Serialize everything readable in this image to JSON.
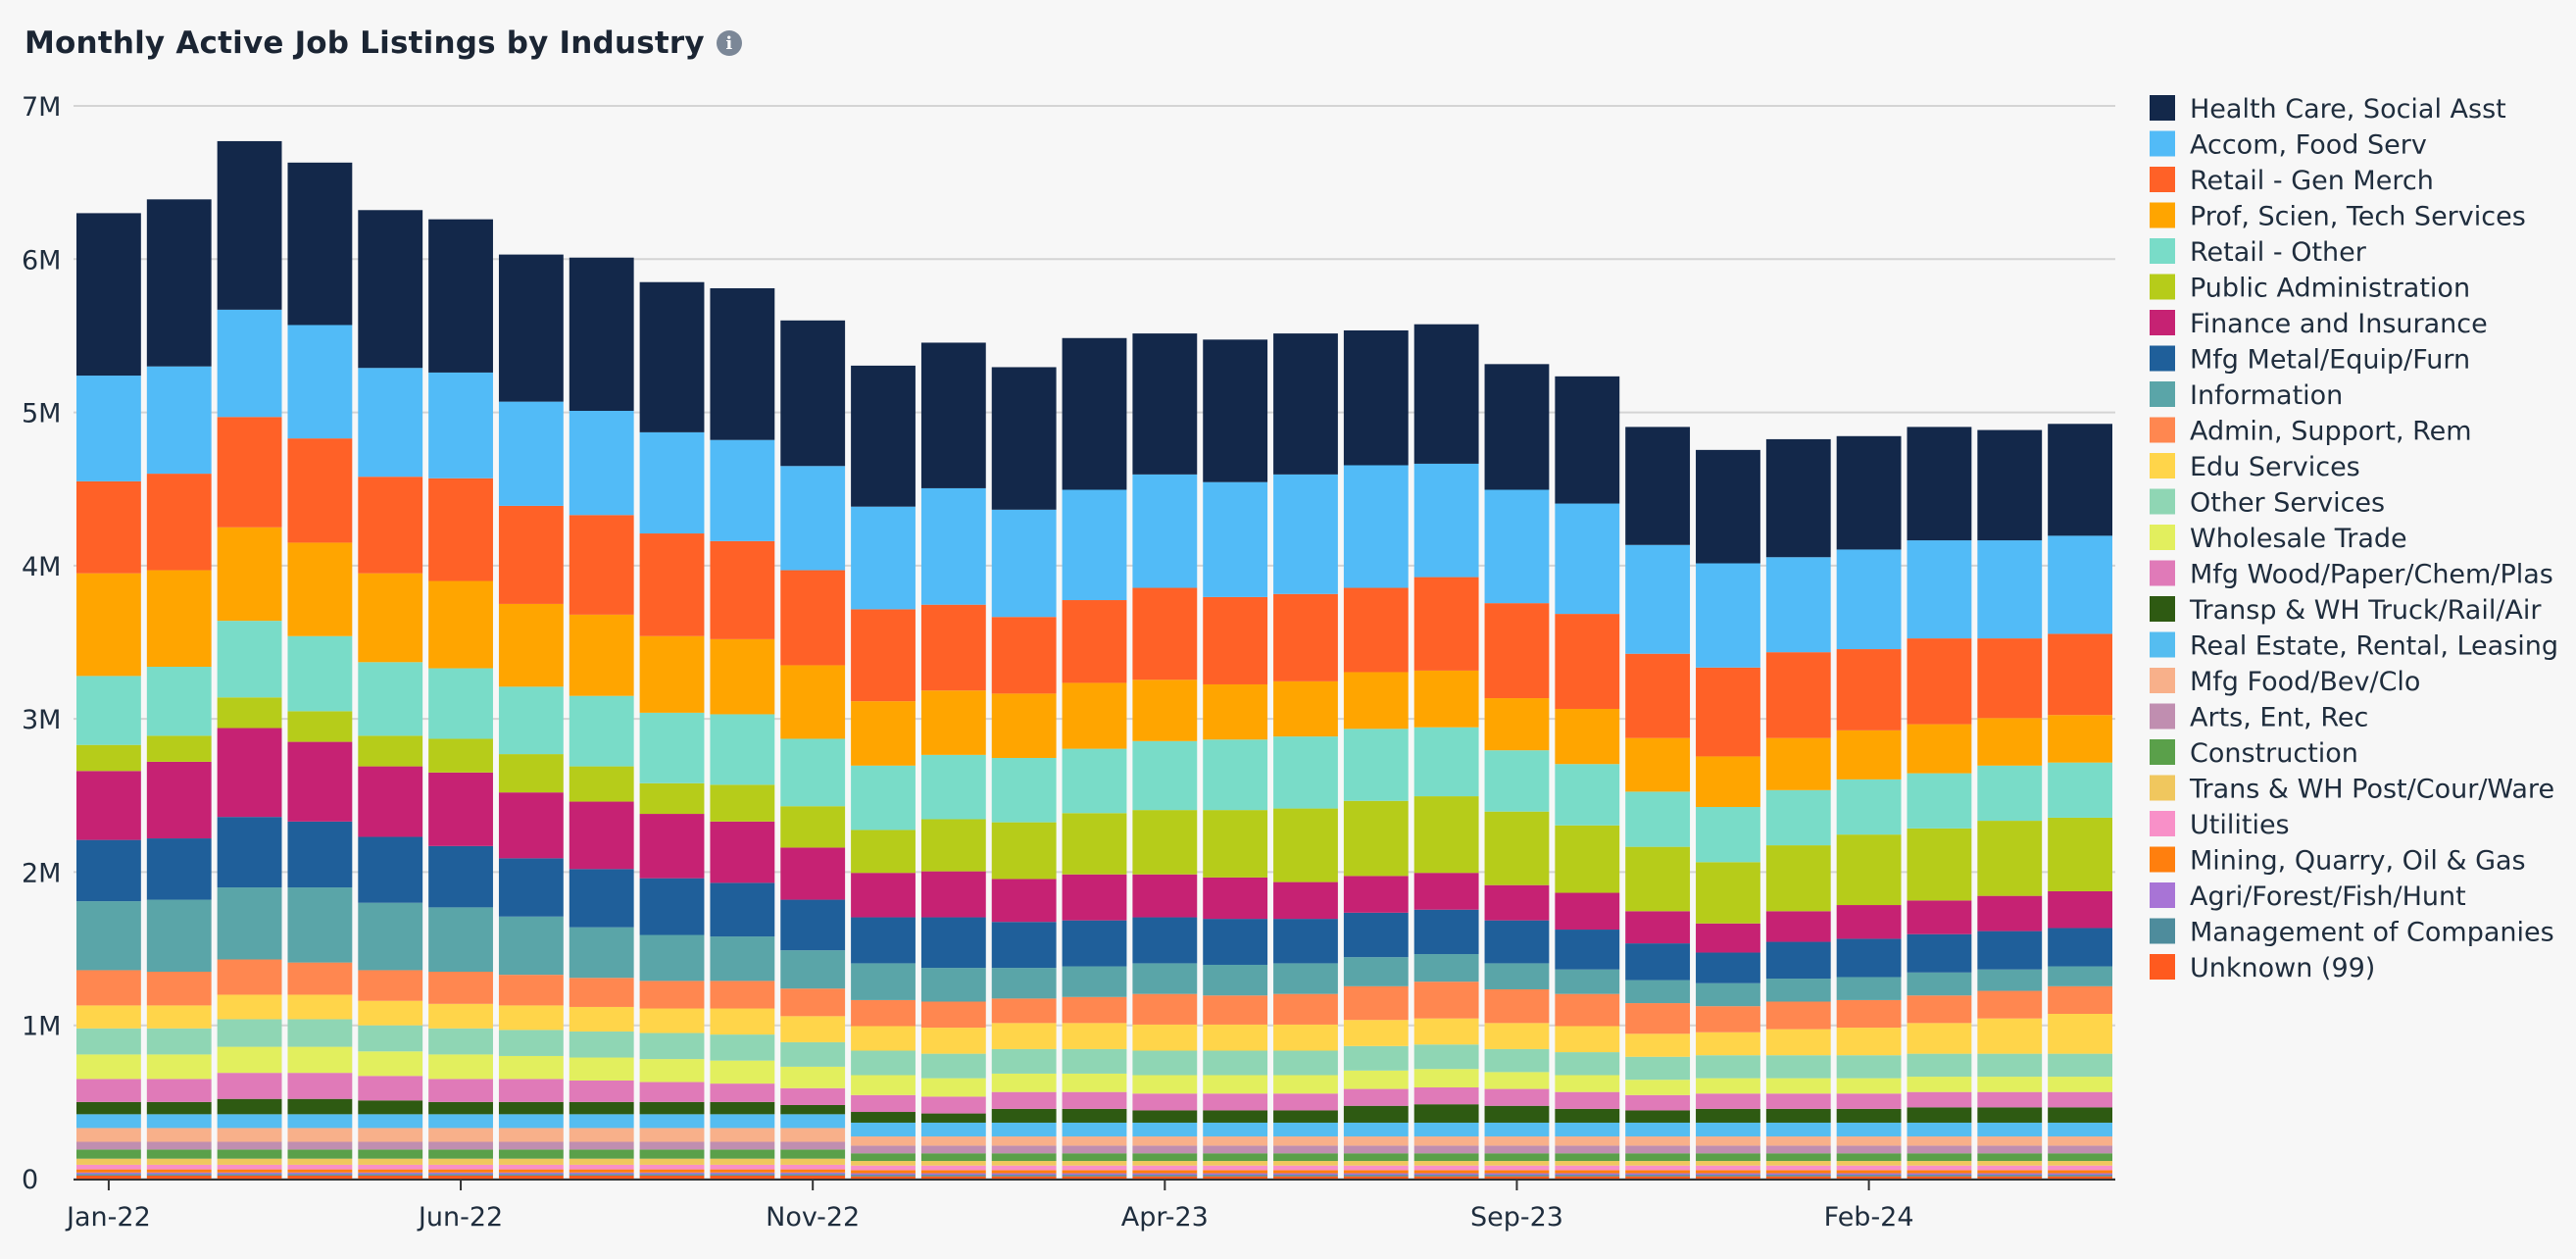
{
  "header": {
    "title": "Monthly Active Job Listings by Industry",
    "info_icon": "info-icon"
  },
  "chart_data": {
    "type": "bar",
    "stacked": true,
    "title": "Monthly Active Job Listings by Industry",
    "xlabel": "",
    "ylabel": "",
    "ylim": [
      0,
      7000000
    ],
    "yticks": [
      0,
      1000000,
      2000000,
      3000000,
      4000000,
      5000000,
      6000000,
      7000000
    ],
    "ytick_labels": [
      "0",
      "1M",
      "2M",
      "3M",
      "4M",
      "5M",
      "6M",
      "7M"
    ],
    "grid": true,
    "legend_position": "right",
    "categories": [
      "Jan-22",
      "Feb-22",
      "Mar-22",
      "Apr-22",
      "May-22",
      "Jun-22",
      "Jul-22",
      "Aug-22",
      "Sep-22",
      "Oct-22",
      "Nov-22",
      "Dec-22",
      "Jan-23",
      "Feb-23",
      "Mar-23",
      "Apr-23",
      "May-23",
      "Jun-23",
      "Jul-23",
      "Aug-23",
      "Sep-23",
      "Oct-23",
      "Nov-23",
      "Dec-23",
      "Jan-24",
      "Feb-24",
      "Mar-24",
      "Apr-24",
      "May-24"
    ],
    "xtick_labels": [
      {
        "index": 0,
        "label": "Jan-22"
      },
      {
        "index": 5,
        "label": "Jun-22"
      },
      {
        "index": 10,
        "label": "Nov-22"
      },
      {
        "index": 15,
        "label": "Apr-23"
      },
      {
        "index": 20,
        "label": "Sep-23"
      },
      {
        "index": 25,
        "label": "Feb-24"
      }
    ],
    "series": [
      {
        "name": "Unknown (99)",
        "color": "#ff5a1f",
        "values": [
          20000,
          20000,
          20000,
          20000,
          20000,
          20000,
          20000,
          20000,
          20000,
          20000,
          20000,
          15000,
          15000,
          15000,
          15000,
          15000,
          15000,
          15000,
          15000,
          15000,
          15000,
          15000,
          15000,
          15000,
          15000,
          15000,
          15000,
          15000,
          15000
        ]
      },
      {
        "name": "Management of Companies",
        "color": "#4e8c9c",
        "values": [
          10000,
          10000,
          10000,
          10000,
          10000,
          10000,
          10000,
          10000,
          10000,
          10000,
          10000,
          10000,
          10000,
          10000,
          10000,
          10000,
          10000,
          10000,
          10000,
          10000,
          10000,
          10000,
          10000,
          10000,
          10000,
          10000,
          10000,
          10000,
          10000
        ]
      },
      {
        "name": "Agri/Forest/Fish/Hunt",
        "color": "#a874d6",
        "values": [
          10000,
          10000,
          10000,
          10000,
          10000,
          10000,
          10000,
          10000,
          10000,
          10000,
          10000,
          10000,
          10000,
          10000,
          10000,
          10000,
          10000,
          10000,
          10000,
          10000,
          10000,
          10000,
          10000,
          10000,
          10000,
          10000,
          10000,
          10000,
          10000
        ]
      },
      {
        "name": "Mining, Quarry, Oil & Gas",
        "color": "#ff7f0e",
        "values": [
          20000,
          20000,
          20000,
          20000,
          20000,
          20000,
          20000,
          20000,
          20000,
          20000,
          20000,
          20000,
          20000,
          20000,
          20000,
          20000,
          20000,
          20000,
          20000,
          20000,
          20000,
          20000,
          20000,
          20000,
          20000,
          20000,
          20000,
          20000,
          20000
        ]
      },
      {
        "name": "Utilities",
        "color": "#f890c8",
        "values": [
          30000,
          30000,
          30000,
          30000,
          30000,
          30000,
          30000,
          30000,
          30000,
          30000,
          30000,
          30000,
          30000,
          30000,
          30000,
          30000,
          30000,
          30000,
          30000,
          30000,
          30000,
          30000,
          30000,
          30000,
          30000,
          30000,
          30000,
          30000,
          30000
        ]
      },
      {
        "name": "Trans & WH Post/Cour/Ware",
        "color": "#f0c75e",
        "values": [
          40000,
          40000,
          40000,
          40000,
          40000,
          40000,
          40000,
          40000,
          40000,
          40000,
          40000,
          30000,
          30000,
          30000,
          30000,
          30000,
          30000,
          30000,
          30000,
          30000,
          30000,
          30000,
          30000,
          30000,
          30000,
          30000,
          30000,
          30000,
          30000
        ]
      },
      {
        "name": "Construction",
        "color": "#5aa04a",
        "values": [
          60000,
          60000,
          60000,
          60000,
          60000,
          60000,
          60000,
          60000,
          60000,
          60000,
          60000,
          50000,
          50000,
          50000,
          50000,
          50000,
          50000,
          50000,
          50000,
          50000,
          50000,
          50000,
          50000,
          50000,
          50000,
          50000,
          50000,
          50000,
          50000
        ]
      },
      {
        "name": "Arts, Ent, Rec",
        "color": "#c08eb0",
        "values": [
          50000,
          50000,
          50000,
          50000,
          50000,
          50000,
          50000,
          50000,
          50000,
          50000,
          50000,
          50000,
          50000,
          50000,
          50000,
          50000,
          50000,
          50000,
          50000,
          50000,
          50000,
          50000,
          50000,
          50000,
          50000,
          50000,
          50000,
          50000,
          50000
        ]
      },
      {
        "name": "Mfg Food/Bev/Clo",
        "color": "#f8b08a",
        "values": [
          90000,
          90000,
          90000,
          90000,
          90000,
          90000,
          90000,
          90000,
          90000,
          90000,
          90000,
          60000,
          60000,
          60000,
          60000,
          60000,
          60000,
          60000,
          60000,
          60000,
          60000,
          60000,
          60000,
          60000,
          60000,
          60000,
          60000,
          60000,
          60000
        ]
      },
      {
        "name": "Real Estate, Rental, Leasing",
        "color": "#55bdf0",
        "values": [
          90000,
          90000,
          90000,
          90000,
          90000,
          90000,
          90000,
          90000,
          90000,
          90000,
          90000,
          90000,
          90000,
          90000,
          90000,
          90000,
          90000,
          90000,
          90000,
          90000,
          90000,
          90000,
          90000,
          90000,
          90000,
          90000,
          90000,
          90000,
          90000
        ]
      },
      {
        "name": "Transp & WH Truck/Rail/Air",
        "color": "#2e5a12",
        "values": [
          80000,
          80000,
          100000,
          100000,
          90000,
          80000,
          80000,
          80000,
          80000,
          80000,
          60000,
          70000,
          60000,
          90000,
          90000,
          80000,
          80000,
          80000,
          110000,
          120000,
          110000,
          90000,
          80000,
          90000,
          90000,
          90000,
          100000,
          100000,
          100000
        ]
      },
      {
        "name": "Mfg Wood/Paper/Chem/Plas",
        "color": "#e07ab8",
        "values": [
          150000,
          150000,
          170000,
          170000,
          160000,
          150000,
          150000,
          140000,
          130000,
          120000,
          110000,
          110000,
          110000,
          110000,
          110000,
          110000,
          110000,
          110000,
          110000,
          110000,
          110000,
          110000,
          100000,
          100000,
          100000,
          100000,
          100000,
          100000,
          100000
        ]
      },
      {
        "name": "Wholesale Trade",
        "color": "#e2ef5e",
        "values": [
          160000,
          160000,
          170000,
          170000,
          160000,
          160000,
          150000,
          150000,
          150000,
          150000,
          140000,
          130000,
          120000,
          120000,
          120000,
          120000,
          120000,
          120000,
          120000,
          120000,
          110000,
          110000,
          100000,
          100000,
          100000,
          100000,
          100000,
          100000,
          100000
        ]
      },
      {
        "name": "Other Services",
        "color": "#8fd6b4",
        "values": [
          170000,
          170000,
          180000,
          180000,
          170000,
          170000,
          170000,
          170000,
          170000,
          170000,
          160000,
          160000,
          160000,
          160000,
          160000,
          160000,
          160000,
          160000,
          160000,
          160000,
          150000,
          150000,
          150000,
          150000,
          150000,
          150000,
          150000,
          150000,
          150000
        ]
      },
      {
        "name": "Edu Services",
        "color": "#ffd54a",
        "values": [
          150000,
          150000,
          160000,
          160000,
          160000,
          160000,
          160000,
          160000,
          160000,
          170000,
          170000,
          160000,
          170000,
          170000,
          170000,
          170000,
          170000,
          170000,
          170000,
          170000,
          170000,
          170000,
          150000,
          150000,
          170000,
          180000,
          200000,
          230000,
          260000
        ]
      },
      {
        "name": "Admin, Support, Rem",
        "color": "#ff8750",
        "values": [
          230000,
          220000,
          230000,
          210000,
          200000,
          210000,
          200000,
          190000,
          180000,
          180000,
          180000,
          170000,
          170000,
          160000,
          170000,
          200000,
          190000,
          200000,
          220000,
          240000,
          220000,
          210000,
          200000,
          170000,
          180000,
          180000,
          180000,
          180000,
          180000
        ]
      },
      {
        "name": "Information",
        "color": "#5aa5a8",
        "values": [
          450000,
          470000,
          470000,
          490000,
          440000,
          420000,
          380000,
          330000,
          300000,
          290000,
          250000,
          240000,
          220000,
          200000,
          200000,
          200000,
          200000,
          200000,
          190000,
          180000,
          170000,
          160000,
          150000,
          150000,
          150000,
          150000,
          150000,
          140000,
          130000
        ]
      },
      {
        "name": "Mfg Metal/Equip/Furn",
        "color": "#1f5f9a",
        "values": [
          400000,
          400000,
          460000,
          430000,
          430000,
          400000,
          380000,
          380000,
          370000,
          350000,
          330000,
          300000,
          330000,
          300000,
          300000,
          300000,
          300000,
          290000,
          290000,
          290000,
          280000,
          260000,
          240000,
          200000,
          240000,
          250000,
          250000,
          250000,
          250000
        ]
      },
      {
        "name": "Finance and Insurance",
        "color": "#c62273",
        "values": [
          450000,
          500000,
          580000,
          520000,
          460000,
          480000,
          430000,
          440000,
          420000,
          400000,
          340000,
          290000,
          300000,
          280000,
          300000,
          280000,
          270000,
          240000,
          240000,
          240000,
          230000,
          240000,
          210000,
          190000,
          200000,
          220000,
          220000,
          230000,
          240000
        ]
      },
      {
        "name": "Public Administration",
        "color": "#b6cc1a",
        "values": [
          170000,
          170000,
          200000,
          200000,
          200000,
          220000,
          250000,
          230000,
          200000,
          240000,
          270000,
          280000,
          340000,
          370000,
          400000,
          420000,
          440000,
          480000,
          490000,
          500000,
          480000,
          440000,
          420000,
          400000,
          430000,
          460000,
          470000,
          490000,
          480000
        ]
      },
      {
        "name": "Retail - Other",
        "color": "#79dcc8",
        "values": [
          450000,
          450000,
          500000,
          490000,
          480000,
          460000,
          440000,
          460000,
          460000,
          460000,
          440000,
          420000,
          420000,
          420000,
          420000,
          450000,
          460000,
          470000,
          470000,
          450000,
          400000,
          400000,
          360000,
          360000,
          360000,
          360000,
          360000,
          360000,
          360000
        ]
      },
      {
        "name": "Prof, Scien, Tech Services",
        "color": "#ffa500",
        "values": [
          670000,
          630000,
          610000,
          610000,
          580000,
          570000,
          540000,
          530000,
          500000,
          490000,
          480000,
          420000,
          420000,
          420000,
          430000,
          400000,
          360000,
          360000,
          370000,
          370000,
          340000,
          360000,
          350000,
          330000,
          340000,
          320000,
          320000,
          310000,
          310000
        ]
      },
      {
        "name": "Retail - Gen Merch",
        "color": "#ff6127",
        "values": [
          600000,
          630000,
          720000,
          680000,
          630000,
          670000,
          640000,
          650000,
          670000,
          640000,
          620000,
          600000,
          560000,
          500000,
          540000,
          600000,
          570000,
          570000,
          550000,
          610000,
          620000,
          620000,
          550000,
          580000,
          560000,
          530000,
          560000,
          520000,
          530000
        ]
      },
      {
        "name": "Accom, Food Serv",
        "color": "#52bbf7",
        "values": [
          690000,
          700000,
          700000,
          740000,
          710000,
          690000,
          680000,
          680000,
          660000,
          660000,
          680000,
          670000,
          760000,
          700000,
          720000,
          740000,
          750000,
          780000,
          800000,
          740000,
          740000,
          720000,
          710000,
          680000,
          620000,
          650000,
          640000,
          640000,
          640000
        ]
      },
      {
        "name": "Health Care, Social Asst",
        "color": "#13284a",
        "values": [
          1060000,
          1090000,
          1100000,
          1060000,
          1030000,
          1000000,
          960000,
          1000000,
          980000,
          990000,
          950000,
          920000,
          950000,
          930000,
          990000,
          920000,
          930000,
          920000,
          880000,
          910000,
          820000,
          830000,
          770000,
          740000,
          770000,
          740000,
          740000,
          720000,
          730000
        ]
      }
    ]
  }
}
